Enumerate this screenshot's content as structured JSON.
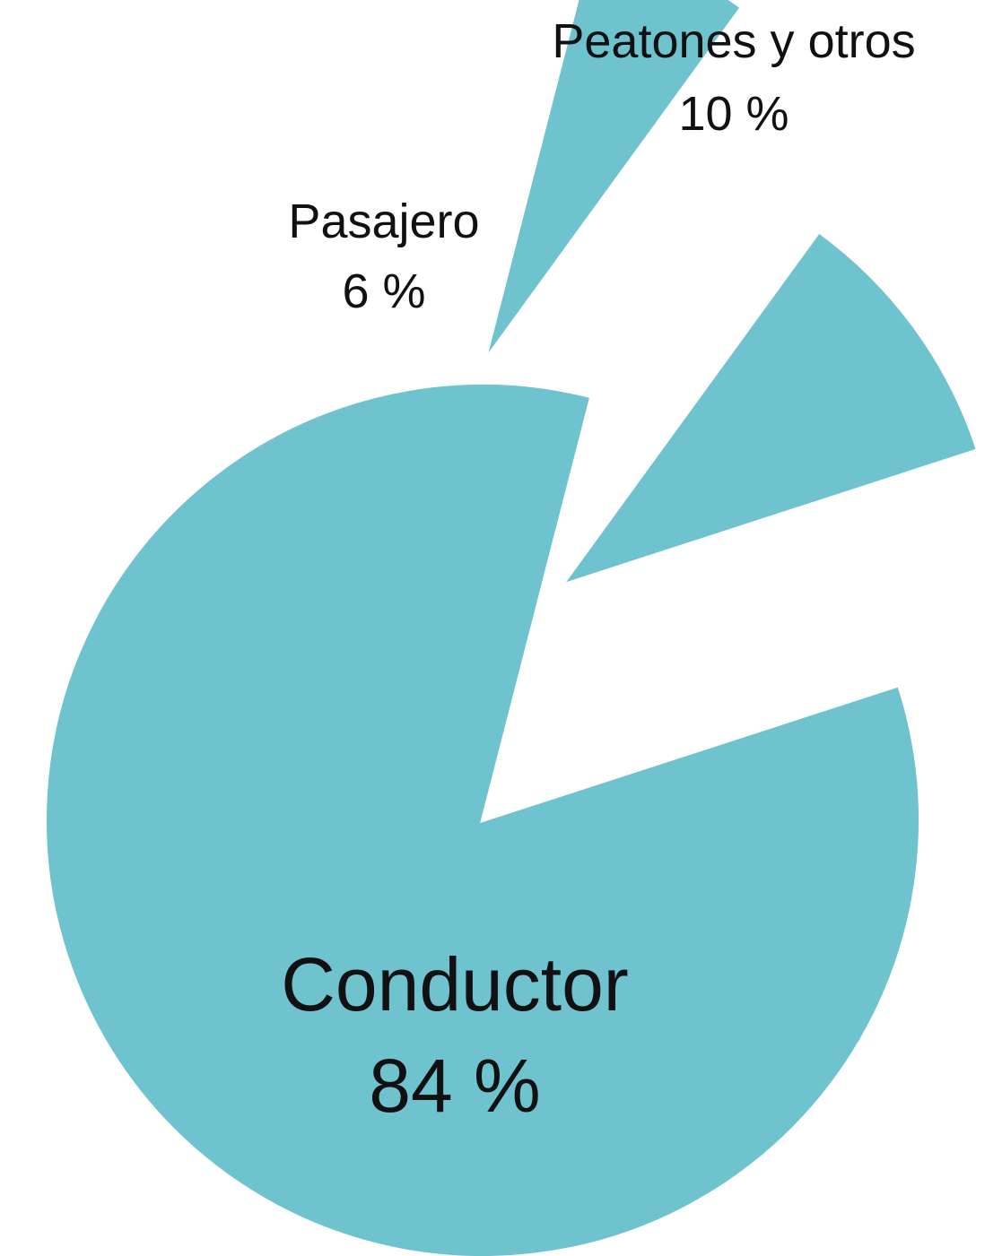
{
  "chart_data": {
    "type": "pie",
    "title": "",
    "slice_color": "#6fc3cf",
    "slices": [
      {
        "name": "Peatones y otros",
        "value_label": "10 %",
        "value": 10,
        "exploded": true
      },
      {
        "name": "Conductor",
        "value_label": "84 %",
        "value": 84,
        "exploded": false
      },
      {
        "name": "Pasajero",
        "value_label": "6 %",
        "value": 6,
        "exploded": true
      }
    ]
  }
}
